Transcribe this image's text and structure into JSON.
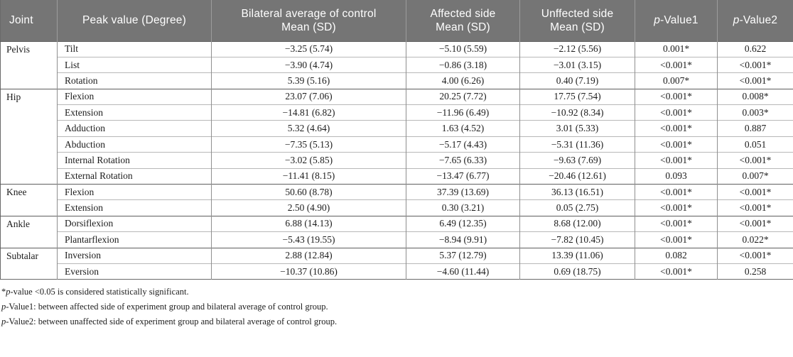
{
  "table": {
    "header": {
      "joint": "Joint",
      "peak": "Peak value (Degree)",
      "control_line1": "Bilateral average of control",
      "control_line2": "Mean (SD)",
      "affected_line1": "Affected side",
      "affected_line2": "Mean (SD)",
      "unaffected_line1": "Unffected side",
      "unaffected_line2": "Mean (SD)",
      "p1_italic": "p",
      "p1_rest": "-Value1",
      "p2_italic": "p",
      "p2_rest": "-Value2"
    },
    "groups": [
      {
        "joint": "Pelvis",
        "rows": [
          {
            "peak": "Tilt",
            "control": "−3.25 (5.74)",
            "affected": "−5.10 (5.59)",
            "unaffected": "−2.12 (5.56)",
            "p1": "0.001*",
            "p2": "0.622"
          },
          {
            "peak": "List",
            "control": "−3.90 (4.74)",
            "affected": "−0.86 (3.18)",
            "unaffected": "−3.01 (3.15)",
            "p1": "<0.001*",
            "p2": "<0.001*"
          },
          {
            "peak": "Rotation",
            "control": "5.39 (5.16)",
            "affected": "4.00 (6.26)",
            "unaffected": "0.40 (7.19)",
            "p1": "0.007*",
            "p2": "<0.001*"
          }
        ]
      },
      {
        "joint": "Hip",
        "rows": [
          {
            "peak": "Flexion",
            "control": "23.07 (7.06)",
            "affected": "20.25 (7.72)",
            "unaffected": "17.75 (7.54)",
            "p1": "<0.001*",
            "p2": "0.008*"
          },
          {
            "peak": "Extension",
            "control": "−14.81 (6.82)",
            "affected": "−11.96 (6.49)",
            "unaffected": "−10.92 (8.34)",
            "p1": "<0.001*",
            "p2": "0.003*"
          },
          {
            "peak": "Adduction",
            "control": "5.32 (4.64)",
            "affected": "1.63 (4.52)",
            "unaffected": "3.01 (5.33)",
            "p1": "<0.001*",
            "p2": "0.887"
          },
          {
            "peak": "Abduction",
            "control": "−7.35 (5.13)",
            "affected": "−5.17 (4.43)",
            "unaffected": "−5.31 (11.36)",
            "p1": "<0.001*",
            "p2": "0.051"
          },
          {
            "peak": "Internal Rotation",
            "control": "−3.02 (5.85)",
            "affected": "−7.65 (6.33)",
            "unaffected": "−9.63 (7.69)",
            "p1": "<0.001*",
            "p2": "<0.001*"
          },
          {
            "peak": "External Rotation",
            "control": "−11.41 (8.15)",
            "affected": "−13.47 (6.77)",
            "unaffected": "−20.46 (12.61)",
            "p1": "0.093",
            "p2": "0.007*"
          }
        ]
      },
      {
        "joint": "Knee",
        "rows": [
          {
            "peak": "Flexion",
            "control": "50.60 (8.78)",
            "affected": "37.39 (13.69)",
            "unaffected": "36.13 (16.51)",
            "p1": "<0.001*",
            "p2": "<0.001*"
          },
          {
            "peak": "Extension",
            "control": "2.50 (4.90)",
            "affected": "0.30 (3.21)",
            "unaffected": "0.05 (2.75)",
            "p1": "<0.001*",
            "p2": "<0.001*"
          }
        ]
      },
      {
        "joint": "Ankle",
        "rows": [
          {
            "peak": "Dorsiflexion",
            "control": "6.88 (14.13)",
            "affected": "6.49 (12.35)",
            "unaffected": "8.68 (12.00)",
            "p1": "<0.001*",
            "p2": "<0.001*"
          },
          {
            "peak": "Plantarflexion",
            "control": "−5.43 (19.55)",
            "affected": "−8.94 (9.91)",
            "unaffected": "−7.82 (10.45)",
            "p1": "<0.001*",
            "p2": "0.022*"
          }
        ]
      },
      {
        "joint": "Subtalar",
        "rows": [
          {
            "peak": "Inversion",
            "control": "2.88 (12.84)",
            "affected": "5.37 (12.79)",
            "unaffected": "13.39 (11.06)",
            "p1": "0.082",
            "p2": "<0.001*"
          },
          {
            "peak": "Eversion",
            "control": "−10.37 (10.86)",
            "affected": "−4.60 (11.44)",
            "unaffected": "0.69 (18.75)",
            "p1": "<0.001*",
            "p2": "0.258"
          }
        ]
      }
    ]
  },
  "footnotes": [
    [
      {
        "text": "*",
        "italic": false
      },
      {
        "text": "p",
        "italic": true
      },
      {
        "text": "-value <0.05 is considered statistically significant.",
        "italic": false
      }
    ],
    [
      {
        "text": "p",
        "italic": true
      },
      {
        "text": "-Value1: between affected side of experiment group and bilateral average of control group.",
        "italic": false
      }
    ],
    [
      {
        "text": "p",
        "italic": true
      },
      {
        "text": "-Value2: between unaffected side of experiment group and bilateral average of control group.",
        "italic": false
      }
    ]
  ],
  "colors": {
    "header_bg": "#757575",
    "header_text": "#ffffff",
    "group_border": "#5e5e5e",
    "inner_row_border": "#b8b8b8",
    "column_border": "#8f8f8f"
  }
}
